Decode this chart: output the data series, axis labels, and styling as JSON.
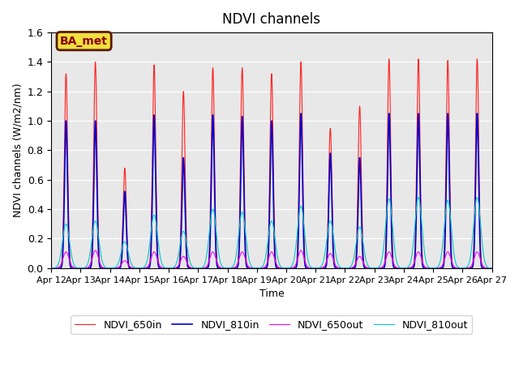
{
  "title": "NDVI channels",
  "xlabel": "Time",
  "ylabel": "NDVI channels (W/m2/nm)",
  "ylim": [
    0,
    1.6
  ],
  "annotation": "BA_met",
  "legend": [
    "NDVI_650in",
    "NDVI_810in",
    "NDVI_650out",
    "NDVI_810out"
  ],
  "colors": [
    "#ff2020",
    "#0000cc",
    "#ff00ff",
    "#00cccc"
  ],
  "background_color": "#e8e8e8",
  "xtick_labels": [
    "Apr 12",
    "Apr 13",
    "Apr 14",
    "Apr 15",
    "Apr 16",
    "Apr 17",
    "Apr 18",
    "Apr 19",
    "Apr 20",
    "Apr 21",
    "Apr 22",
    "Apr 23",
    "Apr 24",
    "Apr 25",
    "Apr 26",
    "Apr 27"
  ],
  "peaks_650in": [
    1.32,
    1.4,
    0.68,
    1.38,
    1.2,
    1.36,
    1.36,
    1.32,
    1.4,
    0.95,
    1.1,
    1.42,
    1.42,
    1.41,
    1.42
  ],
  "peaks_810in": [
    1.0,
    1.0,
    0.52,
    1.04,
    0.75,
    1.04,
    1.03,
    1.0,
    1.05,
    0.78,
    0.75,
    1.05,
    1.05,
    1.05,
    1.05
  ],
  "peaks_650out": [
    0.11,
    0.12,
    0.05,
    0.11,
    0.08,
    0.11,
    0.11,
    0.11,
    0.12,
    0.1,
    0.08,
    0.11,
    0.11,
    0.11,
    0.11
  ],
  "peaks_810out": [
    0.3,
    0.32,
    0.18,
    0.36,
    0.25,
    0.4,
    0.38,
    0.32,
    0.42,
    0.32,
    0.28,
    0.47,
    0.48,
    0.46,
    0.48
  ]
}
